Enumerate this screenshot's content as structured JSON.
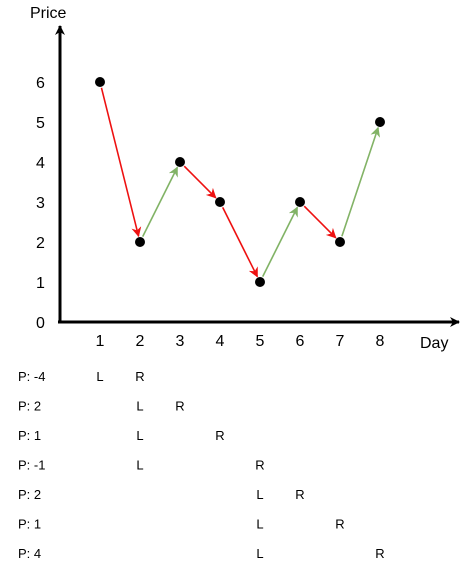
{
  "chart_data": {
    "type": "line",
    "ylabel": "Price",
    "xlabel": "Day",
    "x_ticks": [
      "1",
      "2",
      "3",
      "4",
      "5",
      "6",
      "7",
      "8"
    ],
    "y_ticks": [
      "0",
      "1",
      "2",
      "3",
      "4",
      "5",
      "6"
    ],
    "xlim": [
      0,
      9
    ],
    "ylim": [
      0,
      7
    ],
    "points": [
      {
        "day": 1,
        "price": 6
      },
      {
        "day": 2,
        "price": 2
      },
      {
        "day": 3,
        "price": 4
      },
      {
        "day": 4,
        "price": 3
      },
      {
        "day": 5,
        "price": 1
      },
      {
        "day": 6,
        "price": 3
      },
      {
        "day": 7,
        "price": 2
      },
      {
        "day": 8,
        "price": 5
      }
    ],
    "colors": {
      "down": "#ee1111",
      "up": "#82b366",
      "point": "#000000",
      "axis": "#000000"
    }
  },
  "pointer_rows": [
    {
      "profit": "P: -4",
      "left_label": "L",
      "right_label": "R",
      "left_day": 1,
      "right_day": 2
    },
    {
      "profit": "P: 2",
      "left_label": "L",
      "right_label": "R",
      "left_day": 2,
      "right_day": 3
    },
    {
      "profit": "P: 1",
      "left_label": "L",
      "right_label": "R",
      "left_day": 2,
      "right_day": 4
    },
    {
      "profit": "P: -1",
      "left_label": "L",
      "right_label": "R",
      "left_day": 2,
      "right_day": 5
    },
    {
      "profit": "P: 2",
      "left_label": "L",
      "right_label": "R",
      "left_day": 5,
      "right_day": 6
    },
    {
      "profit": "P: 1",
      "left_label": "L",
      "right_label": "R",
      "left_day": 5,
      "right_day": 7
    },
    {
      "profit": "P: 4",
      "left_label": "L",
      "right_label": "R",
      "left_day": 5,
      "right_day": 8
    }
  ]
}
